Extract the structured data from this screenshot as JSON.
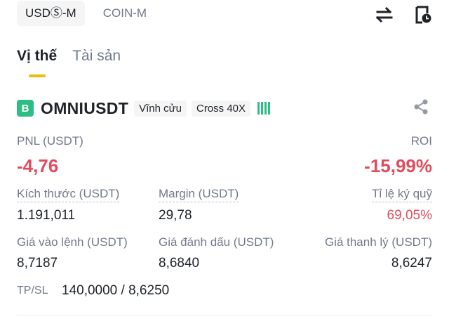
{
  "market_tabs": [
    "USDⓈ-M",
    "COIN-M"
  ],
  "position_tabs": [
    "Vị thế",
    "Tài sản"
  ],
  "position": {
    "badge": "B",
    "symbol": "OMNIUSDT",
    "contract_type": "Vĩnh cửu",
    "margin_mode": "Cross 40X",
    "pnl_label": "PNL (USDT)",
    "pnl_value": "-4,76",
    "roi_label": "ROI",
    "roi_value": "-15,99%",
    "size_label": "Kích thước (USDT)",
    "size_value": "1.191,011",
    "margin_label": "Margin (USDT)",
    "margin_value": "29,78",
    "margin_ratio_label": "Tỉ lệ ký quỹ",
    "margin_ratio_value": "69,05%",
    "entry_label": "Giá vào lệnh (USDT)",
    "entry_value": "8,7187",
    "mark_label": "Giá đánh dấu (USDT)",
    "mark_value": "8,6840",
    "liq_label": "Giá thanh lý (USDT)",
    "liq_value": "8,6247",
    "tpsl_label": "TP/SL",
    "tpsl_value": "140,0000 / 8,6250"
  },
  "icons": {
    "transfer": "swap-arrows-icon",
    "history": "order-history-icon",
    "share": "share-icon",
    "strength": "signal-bars-icon"
  },
  "colors": {
    "accent": "#f0b90b",
    "loss": "#e04c5e",
    "buy": "#2ebd85",
    "muted": "#707a8a"
  }
}
